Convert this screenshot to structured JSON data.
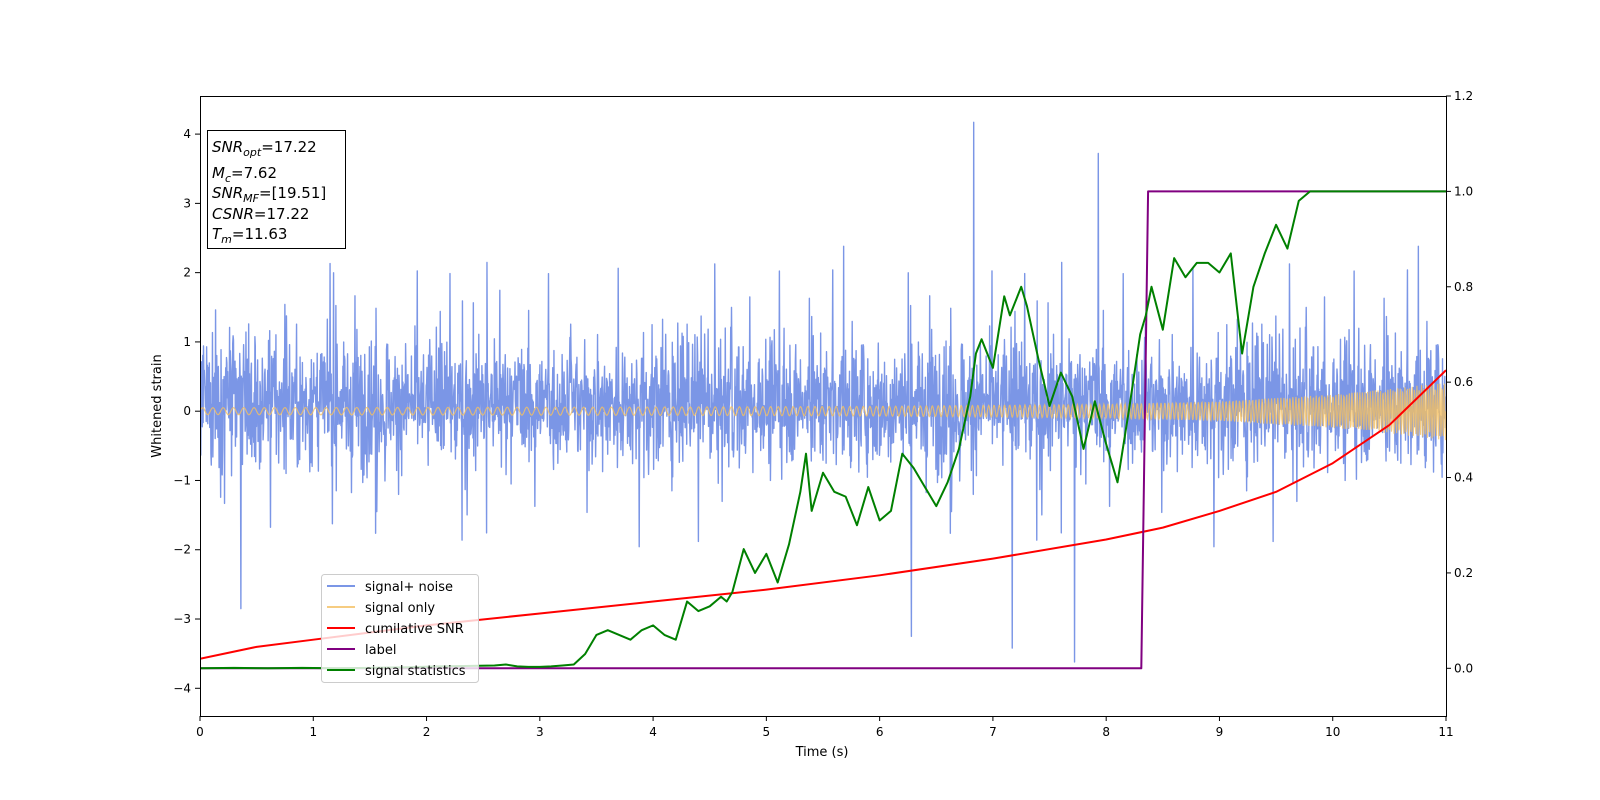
{
  "chart_data": {
    "type": "line",
    "title": "",
    "xlabel": "Time (s)",
    "ylabel": "Whitened strain",
    "y2label": "",
    "xlim": [
      0,
      11
    ],
    "ylim": [
      -4.4,
      4.55
    ],
    "y2lim": [
      -0.1,
      1.2
    ],
    "xticks": [
      0,
      1,
      2,
      3,
      4,
      5,
      6,
      7,
      8,
      9,
      10,
      11
    ],
    "yticks": [
      -4,
      -3,
      -2,
      -1,
      0,
      1,
      2,
      3,
      4
    ],
    "y2ticks": [
      0.0,
      0.2,
      0.4,
      0.6,
      0.8,
      1.0,
      1.2
    ],
    "tick_labels": {
      "x": [
        "0",
        "1",
        "2",
        "3",
        "4",
        "5",
        "6",
        "7",
        "8",
        "9",
        "10",
        "11"
      ],
      "y": [
        "−4",
        "−3",
        "−2",
        "−1",
        "0",
        "1",
        "2",
        "3",
        "4"
      ],
      "y2": [
        "0.0",
        "0.2",
        "0.4",
        "0.6",
        "0.8",
        "1.0",
        "1.2"
      ]
    },
    "grid": false,
    "legend_position": "lower-left",
    "info_box": {
      "position": "upper-left",
      "lines": [
        {
          "base": "SNR",
          "sub": "opt",
          "value": "=17.22"
        },
        {
          "base": "M",
          "sub": "c",
          "value": "=7.62"
        },
        {
          "base": "SNR",
          "sub": "MF",
          "value": "=[19.51]"
        },
        {
          "base": "CSNR",
          "sub": "",
          "value": "=17.22"
        },
        {
          "base": "T",
          "sub": "m",
          "value": "=11.63"
        }
      ]
    },
    "series": [
      {
        "name": "signal+ noise",
        "color": "#7b96e6",
        "axis": "left",
        "kind": "noise-band",
        "description_values": {
          "typical_range": [
            -1.8,
            2.3
          ],
          "outliers": [
            {
              "x": 6.83,
              "y": 4.17
            },
            {
              "x": 7.93,
              "y": 3.72
            },
            {
              "x": 7.72,
              "y": -3.62
            },
            {
              "x": 7.17,
              "y": -3.42
            },
            {
              "x": 6.28,
              "y": -3.25
            },
            {
              "x": 0.36,
              "y": -2.85
            }
          ]
        }
      },
      {
        "name": "signal only",
        "color": "#f5c062",
        "axis": "left",
        "kind": "chirp",
        "envelope": {
          "x": [
            0,
            2,
            4,
            6,
            8,
            9,
            10,
            10.5,
            11
          ],
          "amp": [
            0.05,
            0.055,
            0.06,
            0.07,
            0.1,
            0.14,
            0.24,
            0.32,
            0.42
          ]
        }
      },
      {
        "name": "cumilative SNR",
        "color": "#ff0000",
        "axis": "right",
        "x": [
          0,
          0.5,
          1,
          2,
          3,
          4,
          5,
          6,
          7,
          8,
          8.5,
          9,
          9.5,
          10,
          10.5,
          11
        ],
        "values": [
          0.02,
          0.045,
          0.06,
          0.09,
          0.115,
          0.14,
          0.165,
          0.195,
          0.23,
          0.27,
          0.295,
          0.33,
          0.37,
          0.43,
          0.51,
          0.625
        ]
      },
      {
        "name": "label",
        "color": "#800080",
        "axis": "right",
        "x": [
          0,
          8.31,
          8.37,
          11
        ],
        "values": [
          0,
          0,
          1,
          1
        ]
      },
      {
        "name": "signal statistics",
        "color": "#008000",
        "axis": "right",
        "x": [
          0,
          0.3,
          0.6,
          0.9,
          1.2,
          1.5,
          1.8,
          2.1,
          2.4,
          2.6,
          2.7,
          2.8,
          2.9,
          3.0,
          3.1,
          3.2,
          3.3,
          3.4,
          3.5,
          3.6,
          3.7,
          3.8,
          3.9,
          4.0,
          4.1,
          4.2,
          4.3,
          4.4,
          4.5,
          4.6,
          4.65,
          4.7,
          4.8,
          4.9,
          5.0,
          5.1,
          5.15,
          5.2,
          5.3,
          5.35,
          5.4,
          5.5,
          5.6,
          5.7,
          5.8,
          5.9,
          6.0,
          6.1,
          6.2,
          6.3,
          6.4,
          6.5,
          6.6,
          6.7,
          6.8,
          6.85,
          6.9,
          7.0,
          7.1,
          7.15,
          7.25,
          7.3,
          7.4,
          7.5,
          7.6,
          7.7,
          7.8,
          7.9,
          8.0,
          8.1,
          8.2,
          8.3,
          8.35,
          8.4,
          8.5,
          8.6,
          8.7,
          8.8,
          8.9,
          9.0,
          9.1,
          9.2,
          9.3,
          9.4,
          9.5,
          9.6,
          9.7,
          9.8,
          10.0,
          10.2,
          10.5,
          11
        ],
        "values": [
          0.0,
          0.001,
          0.0,
          0.001,
          0.0,
          0.001,
          0.002,
          0.004,
          0.005,
          0.006,
          0.008,
          0.004,
          0.003,
          0.003,
          0.004,
          0.006,
          0.008,
          0.03,
          0.07,
          0.08,
          0.07,
          0.06,
          0.08,
          0.09,
          0.07,
          0.06,
          0.14,
          0.12,
          0.13,
          0.15,
          0.14,
          0.16,
          0.25,
          0.2,
          0.24,
          0.18,
          0.22,
          0.26,
          0.37,
          0.45,
          0.33,
          0.41,
          0.37,
          0.36,
          0.3,
          0.38,
          0.31,
          0.33,
          0.45,
          0.42,
          0.38,
          0.34,
          0.39,
          0.46,
          0.57,
          0.66,
          0.69,
          0.63,
          0.78,
          0.74,
          0.8,
          0.76,
          0.65,
          0.55,
          0.62,
          0.57,
          0.46,
          0.56,
          0.47,
          0.39,
          0.54,
          0.7,
          0.74,
          0.8,
          0.71,
          0.86,
          0.82,
          0.85,
          0.85,
          0.83,
          0.87,
          0.66,
          0.8,
          0.87,
          0.93,
          0.88,
          0.98,
          1.0,
          1.0,
          1.0,
          1.0,
          1.0
        ]
      }
    ]
  }
}
